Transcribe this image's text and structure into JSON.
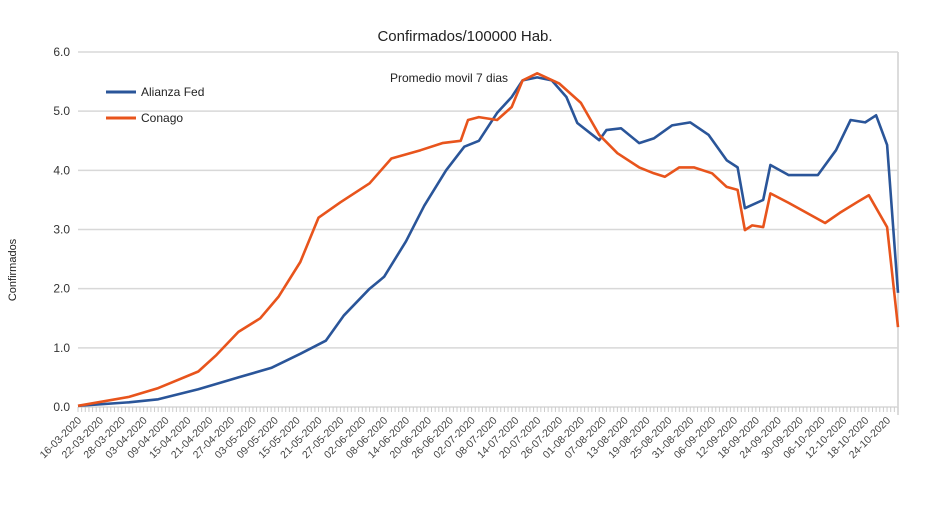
{
  "chart_data": {
    "type": "line",
    "title": "Confirmados/100000 Hab.",
    "subtitle": "Promedio movil 7 dias",
    "xlabel": "",
    "ylabel": "Confirmados",
    "ylim": [
      0,
      6
    ],
    "yticks": [
      "0.0",
      "1.0",
      "2.0",
      "3.0",
      "4.0",
      "5.0",
      "6.0"
    ],
    "grid": true,
    "legend_position": "top-left",
    "x_unit": "days since 16-03-2020",
    "xlim": [
      0,
      225
    ],
    "xtick_step_days": 6,
    "xticks": [
      "16-03-2020",
      "22-03-2020",
      "28-03-2020",
      "03-04-2020",
      "09-04-2020",
      "15-04-2020",
      "21-04-2020",
      "27-04-2020",
      "03-05-2020",
      "09-05-2020",
      "15-05-2020",
      "21-05-2020",
      "27-05-2020",
      "02-06-2020",
      "08-06-2020",
      "14-06-2020",
      "20-06-2020",
      "26-06-2020",
      "02-07-2020",
      "08-07-2020",
      "14-07-2020",
      "20-07-2020",
      "26-07-2020",
      "01-08-2020",
      "07-08-2020",
      "13-08-2020",
      "19-08-2020",
      "25-08-2020",
      "31-08-2020",
      "06-09-2020",
      "12-09-2020",
      "18-09-2020",
      "24-09-2020",
      "30-09-2020",
      "06-10-2020",
      "12-10-2020",
      "18-10-2020",
      "24-10-2020"
    ],
    "series": [
      {
        "name": "Alianza Fed",
        "color": "#2a5599",
        "x": [
          0,
          14,
          22,
          33,
          44,
          53,
          61,
          68,
          73,
          80,
          84,
          90,
          95,
          101,
          106,
          110,
          115,
          119,
          122,
          126,
          130,
          134,
          137,
          143,
          145,
          149,
          154,
          158,
          163,
          168,
          173,
          178,
          181,
          183,
          188,
          190,
          195,
          203,
          208,
          212,
          216,
          219,
          222,
          225
        ],
        "y": [
          0.02,
          0.08,
          0.13,
          0.3,
          0.5,
          0.66,
          0.9,
          1.12,
          1.55,
          2.0,
          2.2,
          2.8,
          3.4,
          4.0,
          4.4,
          4.5,
          4.97,
          5.24,
          5.52,
          5.57,
          5.52,
          5.24,
          4.8,
          4.51,
          4.68,
          4.71,
          4.46,
          4.54,
          4.76,
          4.81,
          4.6,
          4.17,
          4.05,
          3.36,
          3.5,
          4.09,
          3.92,
          3.92,
          4.34,
          4.85,
          4.81,
          4.93,
          4.43,
          1.93
        ]
      },
      {
        "name": "Conago",
        "color": "#e8541c",
        "x": [
          0,
          14,
          22,
          33,
          38,
          44,
          50,
          55,
          61,
          66,
          72,
          80,
          86,
          94,
          100,
          105,
          107,
          110,
          115,
          119,
          122,
          126,
          132,
          138,
          143,
          148,
          154,
          158,
          161,
          165,
          169,
          174,
          178,
          181,
          183,
          185,
          188,
          190,
          195,
          205,
          209,
          214,
          217,
          222,
          225
        ],
        "y": [
          0.02,
          0.17,
          0.32,
          0.6,
          0.88,
          1.27,
          1.5,
          1.86,
          2.45,
          3.2,
          3.46,
          3.78,
          4.2,
          4.34,
          4.46,
          4.5,
          4.85,
          4.9,
          4.85,
          5.07,
          5.52,
          5.64,
          5.47,
          5.14,
          4.6,
          4.29,
          4.05,
          3.95,
          3.89,
          4.05,
          4.05,
          3.95,
          3.72,
          3.67,
          2.99,
          3.07,
          3.04,
          3.61,
          3.45,
          3.11,
          3.28,
          3.47,
          3.58,
          3.04,
          1.35
        ]
      }
    ]
  }
}
